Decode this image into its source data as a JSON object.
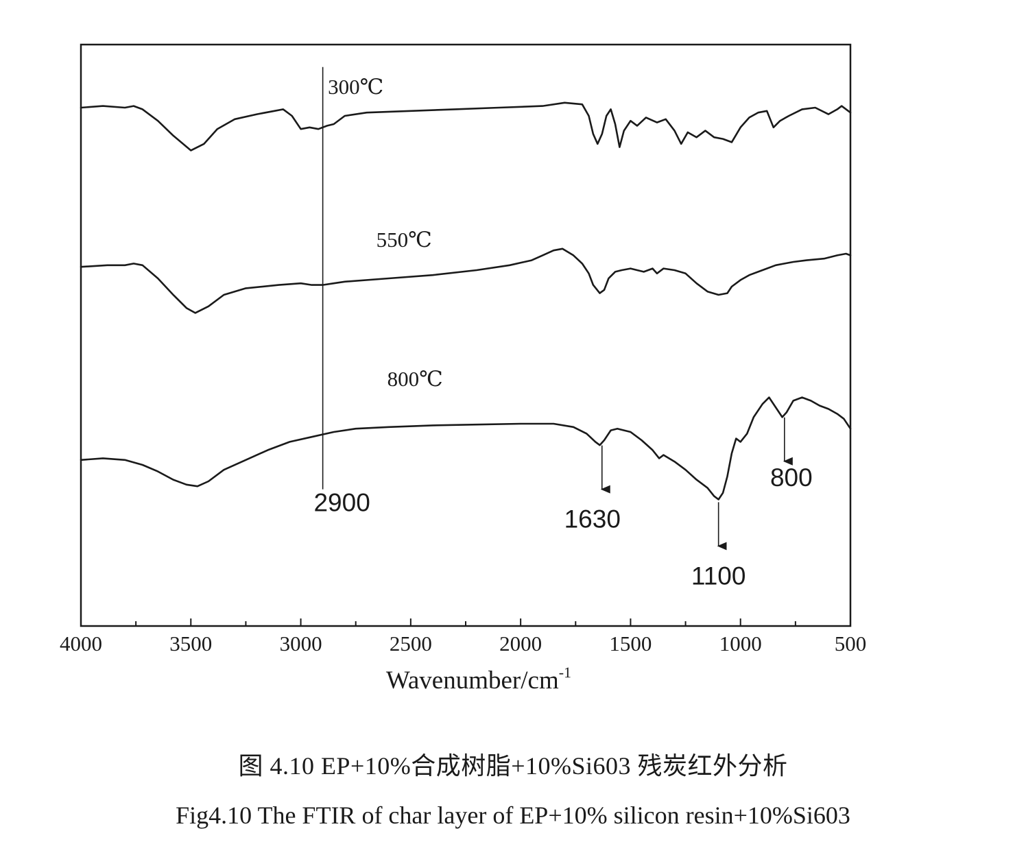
{
  "chart_data": {
    "type": "line",
    "title": "",
    "xlabel": "Wavenumber/cm",
    "xlabel_superscript": "-1",
    "ylabel": "",
    "xlim": [
      4000,
      500
    ],
    "x_reversed": true,
    "x_ticks": [
      4000,
      3500,
      3000,
      2500,
      2000,
      1500,
      1000,
      500
    ],
    "y_ticks": [],
    "grid": false,
    "legend": "none",
    "y_units": "arbitrary transmittance (stacked, offset)",
    "series": [
      {
        "name": "300℃",
        "label_at": 2750,
        "points": [
          [
            4000,
            0.2
          ],
          [
            3900,
            0.21
          ],
          [
            3800,
            0.2
          ],
          [
            3760,
            0.21
          ],
          [
            3720,
            0.19
          ],
          [
            3650,
            0.12
          ],
          [
            3580,
            0.03
          ],
          [
            3500,
            -0.06
          ],
          [
            3440,
            -0.02
          ],
          [
            3380,
            0.07
          ],
          [
            3300,
            0.13
          ],
          [
            3200,
            0.16
          ],
          [
            3120,
            0.18
          ],
          [
            3080,
            0.19
          ],
          [
            3040,
            0.15
          ],
          [
            3000,
            0.07
          ],
          [
            2960,
            0.08
          ],
          [
            2920,
            0.07
          ],
          [
            2880,
            0.09
          ],
          [
            2850,
            0.1
          ],
          [
            2800,
            0.15
          ],
          [
            2700,
            0.17
          ],
          [
            2500,
            0.18
          ],
          [
            2300,
            0.19
          ],
          [
            2100,
            0.2
          ],
          [
            1900,
            0.21
          ],
          [
            1800,
            0.23
          ],
          [
            1720,
            0.22
          ],
          [
            1690,
            0.15
          ],
          [
            1670,
            0.04
          ],
          [
            1650,
            -0.02
          ],
          [
            1630,
            0.04
          ],
          [
            1610,
            0.15
          ],
          [
            1590,
            0.19
          ],
          [
            1570,
            0.1
          ],
          [
            1550,
            -0.04
          ],
          [
            1530,
            0.06
          ],
          [
            1500,
            0.12
          ],
          [
            1470,
            0.09
          ],
          [
            1430,
            0.14
          ],
          [
            1380,
            0.11
          ],
          [
            1340,
            0.13
          ],
          [
            1300,
            0.06
          ],
          [
            1270,
            -0.02
          ],
          [
            1240,
            0.05
          ],
          [
            1200,
            0.02
          ],
          [
            1160,
            0.06
          ],
          [
            1120,
            0.02
          ],
          [
            1080,
            0.01
          ],
          [
            1040,
            -0.01
          ],
          [
            1000,
            0.08
          ],
          [
            960,
            0.14
          ],
          [
            920,
            0.17
          ],
          [
            880,
            0.18
          ],
          [
            850,
            0.08
          ],
          [
            820,
            0.12
          ],
          [
            780,
            0.15
          ],
          [
            720,
            0.19
          ],
          [
            660,
            0.2
          ],
          [
            600,
            0.16
          ],
          [
            560,
            0.19
          ],
          [
            540,
            0.21
          ],
          [
            500,
            0.17
          ]
        ]
      },
      {
        "name": "550℃",
        "label_at": 2530,
        "points": [
          [
            4000,
            0.17
          ],
          [
            3880,
            0.18
          ],
          [
            3800,
            0.18
          ],
          [
            3760,
            0.19
          ],
          [
            3720,
            0.18
          ],
          [
            3650,
            0.1
          ],
          [
            3580,
            0.0
          ],
          [
            3520,
            -0.08
          ],
          [
            3480,
            -0.11
          ],
          [
            3420,
            -0.07
          ],
          [
            3350,
            0.0
          ],
          [
            3250,
            0.04
          ],
          [
            3100,
            0.06
          ],
          [
            3000,
            0.07
          ],
          [
            2950,
            0.06
          ],
          [
            2900,
            0.06
          ],
          [
            2850,
            0.07
          ],
          [
            2800,
            0.08
          ],
          [
            2600,
            0.1
          ],
          [
            2400,
            0.12
          ],
          [
            2200,
            0.15
          ],
          [
            2050,
            0.18
          ],
          [
            1950,
            0.21
          ],
          [
            1900,
            0.24
          ],
          [
            1850,
            0.27
          ],
          [
            1810,
            0.28
          ],
          [
            1760,
            0.24
          ],
          [
            1720,
            0.19
          ],
          [
            1690,
            0.13
          ],
          [
            1670,
            0.06
          ],
          [
            1640,
            0.01
          ],
          [
            1620,
            0.03
          ],
          [
            1600,
            0.1
          ],
          [
            1570,
            0.14
          ],
          [
            1540,
            0.15
          ],
          [
            1500,
            0.16
          ],
          [
            1470,
            0.15
          ],
          [
            1440,
            0.14
          ],
          [
            1400,
            0.16
          ],
          [
            1380,
            0.13
          ],
          [
            1350,
            0.16
          ],
          [
            1300,
            0.15
          ],
          [
            1250,
            0.13
          ],
          [
            1200,
            0.07
          ],
          [
            1150,
            0.02
          ],
          [
            1100,
            0.0
          ],
          [
            1060,
            0.01
          ],
          [
            1040,
            0.05
          ],
          [
            1000,
            0.09
          ],
          [
            960,
            0.12
          ],
          [
            920,
            0.14
          ],
          [
            880,
            0.16
          ],
          [
            840,
            0.18
          ],
          [
            800,
            0.19
          ],
          [
            760,
            0.2
          ],
          [
            700,
            0.21
          ],
          [
            620,
            0.22
          ],
          [
            560,
            0.24
          ],
          [
            520,
            0.25
          ],
          [
            500,
            0.24
          ]
        ]
      },
      {
        "name": "800℃",
        "label_at": 2480,
        "points": [
          [
            4000,
            0.08
          ],
          [
            3900,
            0.09
          ],
          [
            3800,
            0.08
          ],
          [
            3720,
            0.05
          ],
          [
            3650,
            0.01
          ],
          [
            3580,
            -0.04
          ],
          [
            3520,
            -0.07
          ],
          [
            3470,
            -0.08
          ],
          [
            3420,
            -0.05
          ],
          [
            3350,
            0.02
          ],
          [
            3250,
            0.08
          ],
          [
            3150,
            0.14
          ],
          [
            3050,
            0.19
          ],
          [
            2950,
            0.22
          ],
          [
            2850,
            0.25
          ],
          [
            2750,
            0.27
          ],
          [
            2600,
            0.28
          ],
          [
            2400,
            0.29
          ],
          [
            2200,
            0.295
          ],
          [
            2000,
            0.3
          ],
          [
            1850,
            0.3
          ],
          [
            1760,
            0.28
          ],
          [
            1700,
            0.24
          ],
          [
            1660,
            0.19
          ],
          [
            1640,
            0.17
          ],
          [
            1620,
            0.2
          ],
          [
            1590,
            0.26
          ],
          [
            1560,
            0.27
          ],
          [
            1500,
            0.25
          ],
          [
            1450,
            0.2
          ],
          [
            1400,
            0.14
          ],
          [
            1370,
            0.09
          ],
          [
            1350,
            0.11
          ],
          [
            1300,
            0.07
          ],
          [
            1250,
            0.02
          ],
          [
            1200,
            -0.04
          ],
          [
            1150,
            -0.09
          ],
          [
            1120,
            -0.14
          ],
          [
            1100,
            -0.16
          ],
          [
            1080,
            -0.12
          ],
          [
            1060,
            -0.02
          ],
          [
            1040,
            0.12
          ],
          [
            1020,
            0.21
          ],
          [
            1000,
            0.19
          ],
          [
            970,
            0.24
          ],
          [
            940,
            0.34
          ],
          [
            900,
            0.42
          ],
          [
            870,
            0.46
          ],
          [
            840,
            0.4
          ],
          [
            810,
            0.34
          ],
          [
            790,
            0.37
          ],
          [
            760,
            0.44
          ],
          [
            720,
            0.46
          ],
          [
            680,
            0.44
          ],
          [
            640,
            0.41
          ],
          [
            600,
            0.39
          ],
          [
            560,
            0.36
          ],
          [
            530,
            0.33
          ],
          [
            500,
            0.27
          ]
        ]
      }
    ],
    "annotations": [
      {
        "text": "2900",
        "x": 2900,
        "type": "vertical-reference-line"
      },
      {
        "text": "1630",
        "x": 1630,
        "type": "down-arrow"
      },
      {
        "text": "1100",
        "x": 1100,
        "type": "down-arrow"
      },
      {
        "text": "800",
        "x": 800,
        "type": "down-arrow"
      }
    ]
  },
  "captions": {
    "cn": "图 4.10    EP+10%合成树脂+10%Si603 残炭红外分析",
    "en": "Fig4.10 The FTIR of char layer of EP+10% silicon resin+10%Si603"
  }
}
